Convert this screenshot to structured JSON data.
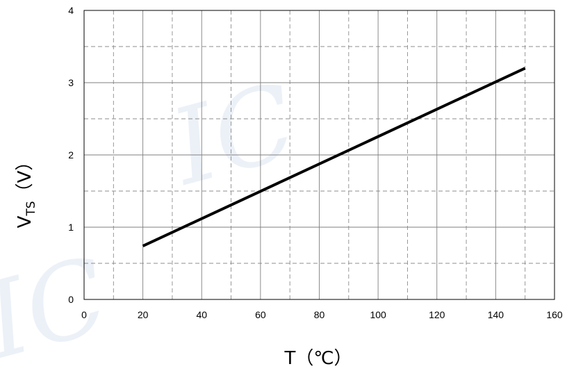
{
  "chart_data": {
    "type": "line",
    "title": "",
    "xlabel": "T（℃）",
    "ylabel_main": "V",
    "ylabel_sub": "TS",
    "ylabel_unit": "（V）",
    "xlim": [
      0,
      160
    ],
    "ylim": [
      0,
      4
    ],
    "x_ticks": [
      0,
      20,
      40,
      60,
      80,
      100,
      120,
      140,
      160
    ],
    "y_ticks": [
      0,
      1,
      2,
      3,
      4
    ],
    "x_ticks_major_display": [
      "0",
      "20",
      "40",
      "60",
      "80",
      "100",
      "120",
      "140",
      "160"
    ],
    "y_ticks_display": [
      "0",
      "1",
      "2",
      "3",
      "4"
    ],
    "grid": "on",
    "legend": "none",
    "series": [
      {
        "x": [
          20,
          150
        ],
        "y": [
          0.74,
          3.2
        ]
      }
    ],
    "colors": {
      "line": "#000000",
      "major_grid": "#7f7f7f",
      "minor_grid": "#8c8c8c",
      "watermark": "#dde6f2"
    }
  }
}
